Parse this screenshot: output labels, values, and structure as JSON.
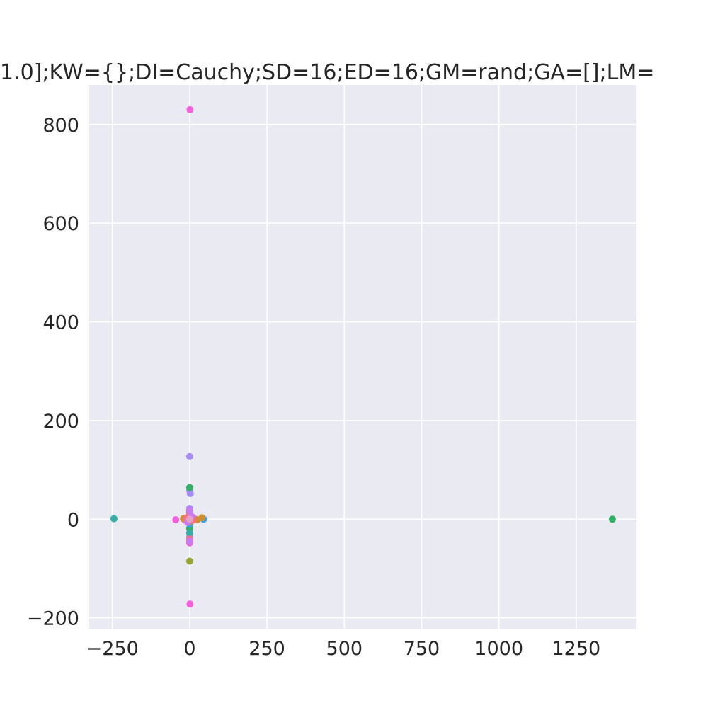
{
  "chart_data": {
    "type": "scatter",
    "title": "1.0];KW={};DI=Cauchy;SD=16;ED=16;GM=rand;GA=[];LM=",
    "xlim": [
      -325,
      1445
    ],
    "ylim": [
      -222,
      880
    ],
    "xticks": [
      -250,
      0,
      250,
      500,
      750,
      1000,
      1250
    ],
    "xtick_labels": [
      "−250",
      "0",
      "250",
      "500",
      "750",
      "1000",
      "1250"
    ],
    "yticks": [
      -200,
      0,
      200,
      400,
      600,
      800
    ],
    "ytick_labels": [
      "−200",
      "0",
      "200",
      "400",
      "600",
      "800"
    ],
    "grid": true,
    "background": "#eaeaf2",
    "series": [
      {
        "color": "#f461dd",
        "points": [
          [
            1,
            830
          ],
          [
            -45,
            -1
          ],
          [
            0,
            -48
          ],
          [
            1,
            -172
          ],
          [
            0,
            8
          ],
          [
            8,
            2
          ],
          [
            -8,
            0
          ],
          [
            0,
            -20
          ],
          [
            3,
            4
          ],
          [
            -3,
            -5
          ],
          [
            15,
            1
          ],
          [
            -15,
            -2
          ],
          [
            0,
            0
          ]
        ]
      },
      {
        "color": "#a48cf4",
        "points": [
          [
            0,
            127
          ],
          [
            0,
            58
          ],
          [
            2,
            52
          ],
          [
            0,
            22
          ],
          [
            0,
            -35
          ],
          [
            5,
            3
          ],
          [
            -5,
            -3
          ]
        ]
      },
      {
        "color": "#32b166",
        "points": [
          [
            0,
            64
          ],
          [
            1367,
            0
          ],
          [
            0,
            -18
          ],
          [
            0,
            12
          ],
          [
            3,
            -4
          ]
        ]
      },
      {
        "color": "#36ada4",
        "points": [
          [
            -245,
            1
          ],
          [
            0,
            -28
          ],
          [
            0,
            5
          ],
          [
            -3,
            2
          ]
        ]
      },
      {
        "color": "#3ba3ec",
        "points": [
          [
            45,
            0
          ],
          [
            0,
            -10
          ],
          [
            0,
            15
          ],
          [
            4,
            -2
          ]
        ]
      },
      {
        "color": "#97a431",
        "points": [
          [
            0,
            -85
          ],
          [
            -5,
            4
          ],
          [
            0,
            -6
          ]
        ]
      },
      {
        "color": "#ce9032",
        "points": [
          [
            40,
            3
          ],
          [
            -20,
            1
          ],
          [
            0,
            3
          ],
          [
            25,
            -1
          ]
        ]
      },
      {
        "color": "#f77189",
        "points": [
          [
            -10,
            2
          ],
          [
            10,
            -2
          ],
          [
            0,
            -40
          ],
          [
            0,
            10
          ]
        ]
      },
      {
        "color": "#cc7af4",
        "points": [
          [
            0,
            -45
          ],
          [
            0,
            18
          ],
          [
            6,
            6
          ],
          [
            -6,
            -6
          ]
        ]
      },
      {
        "color": "#e6a0c4",
        "points": [
          [
            0,
            0
          ]
        ]
      }
    ]
  }
}
